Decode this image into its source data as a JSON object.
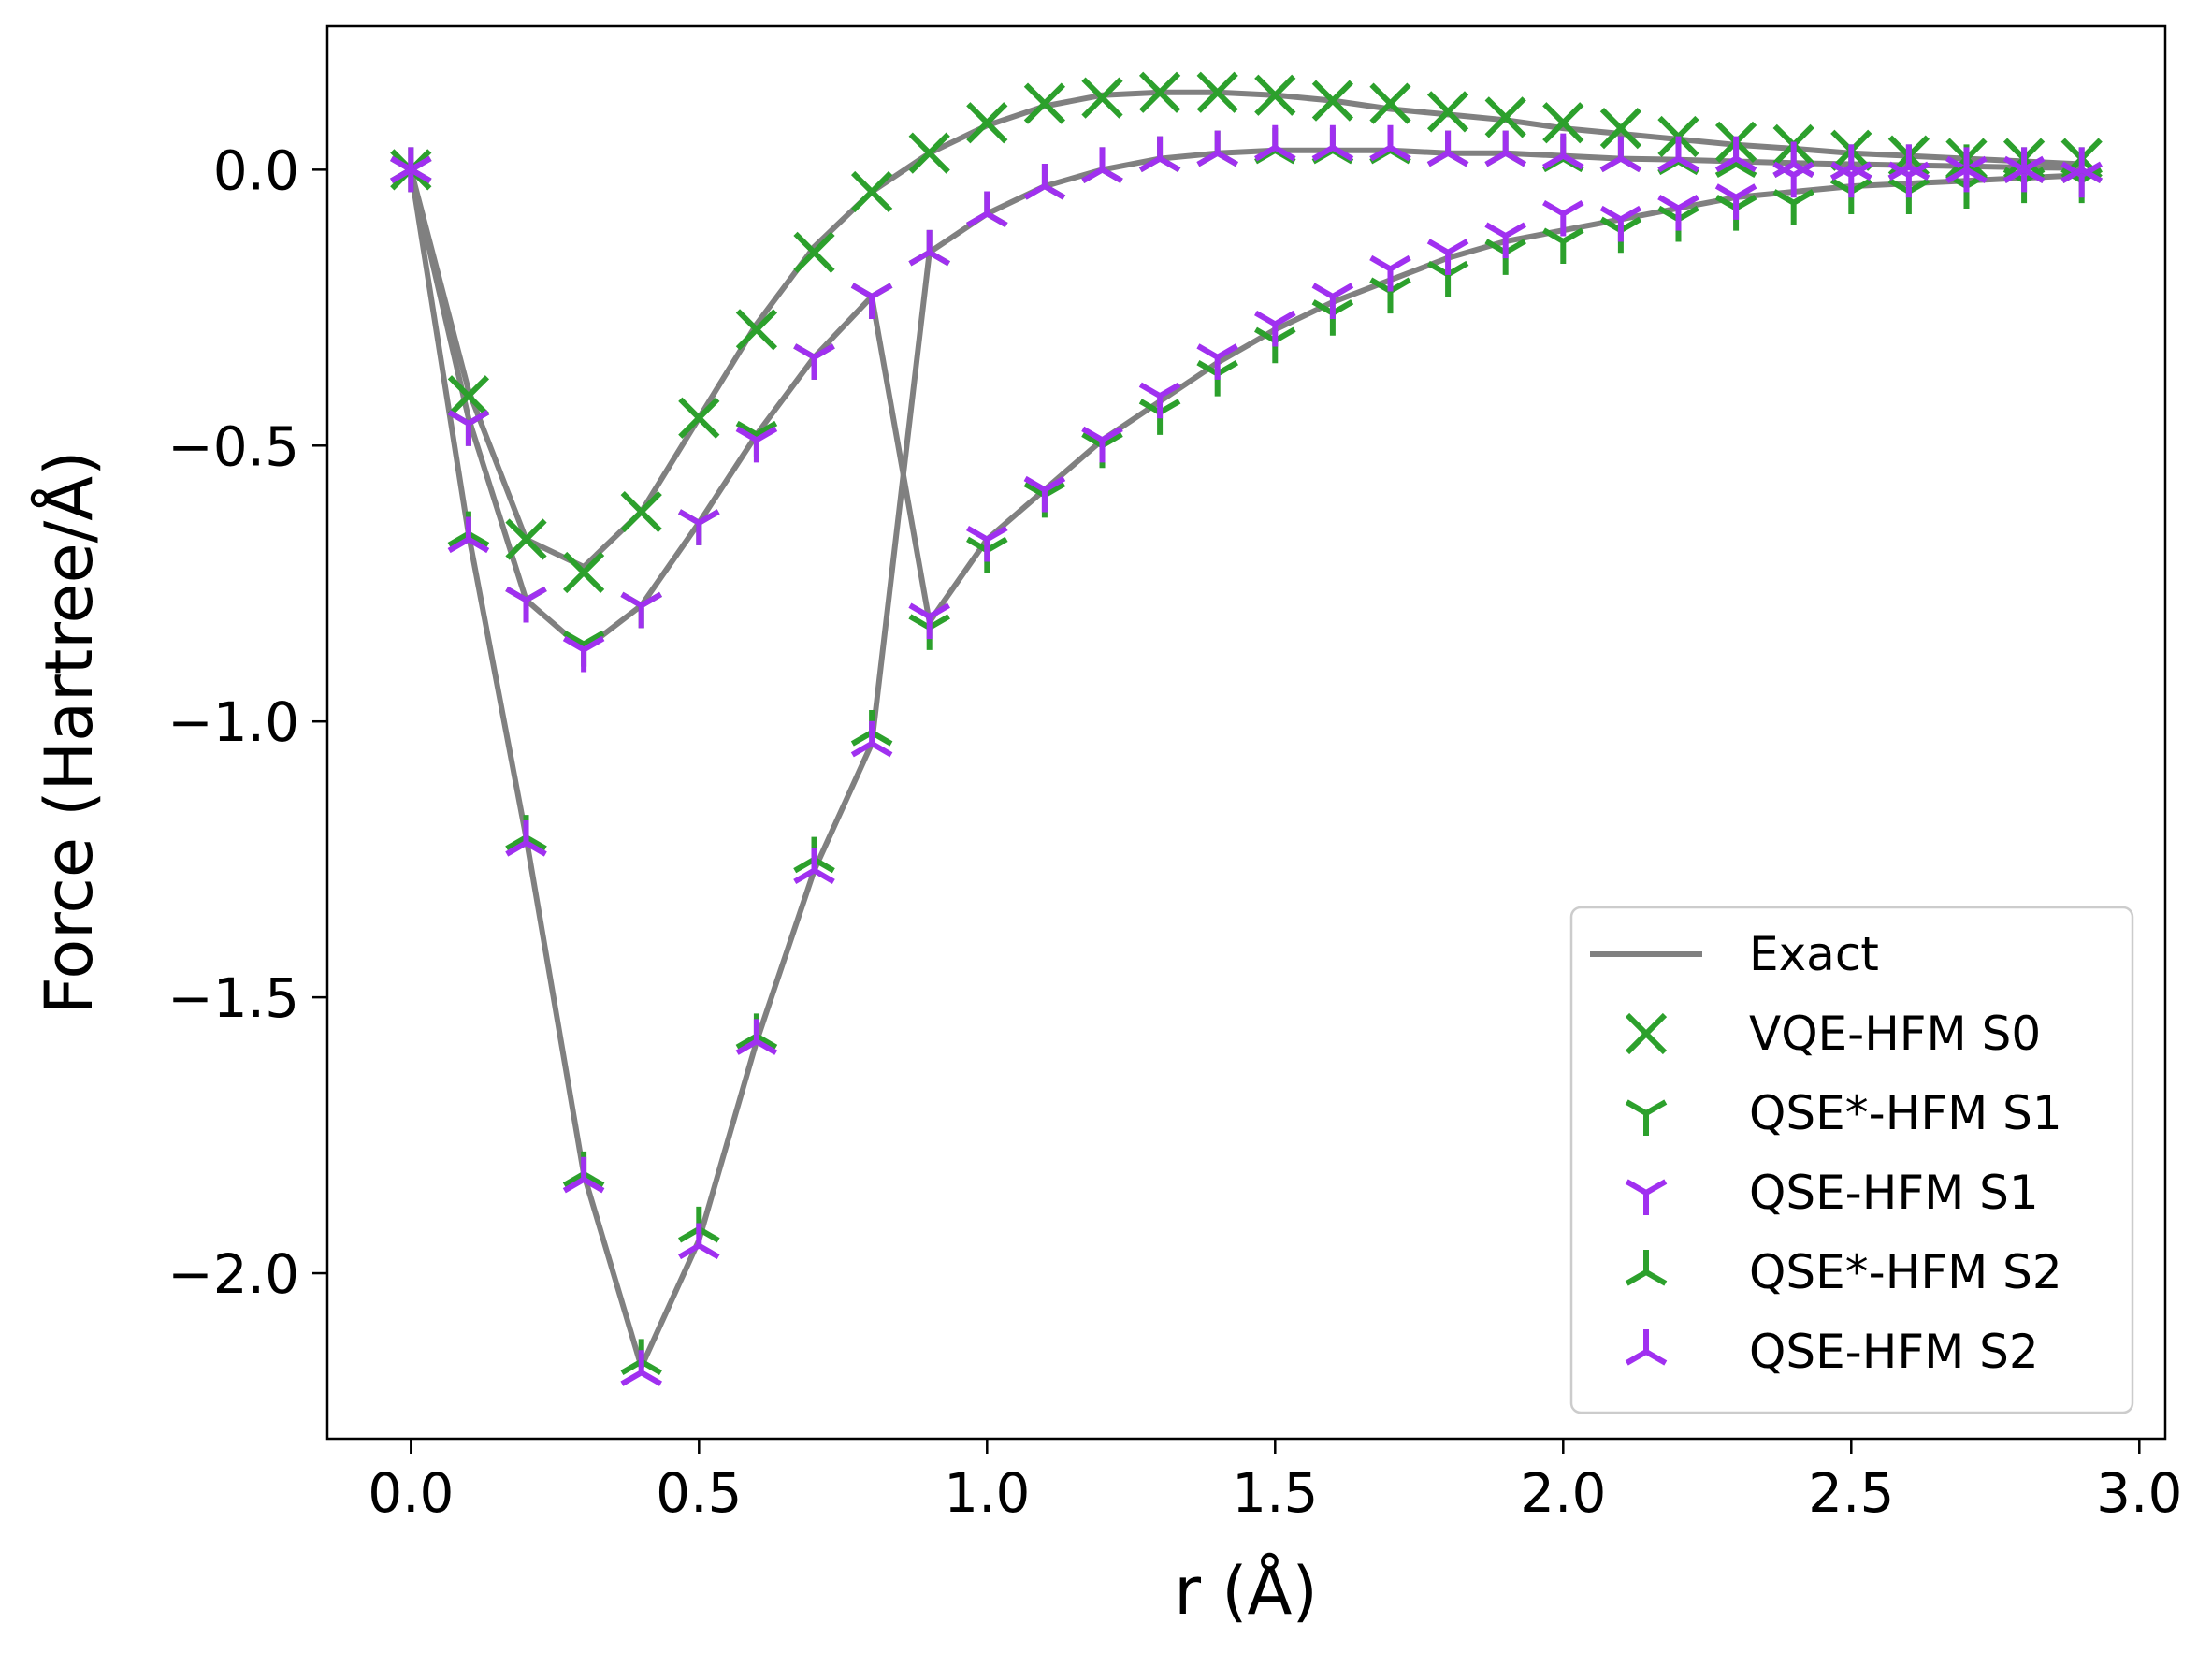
{
  "chart_data": {
    "type": "line",
    "title": "",
    "xlabel": "r (Å)",
    "ylabel": "Force (Hartree/Å)",
    "xlim": [
      -0.145,
      3.045
    ],
    "ylim": [
      -2.3,
      0.26
    ],
    "xticks": [
      0.0,
      0.5,
      1.0,
      1.5,
      2.0,
      2.5,
      3.0
    ],
    "xtick_labels": [
      "0.0",
      "0.5",
      "1.0",
      "1.5",
      "2.0",
      "2.5",
      "3.0"
    ],
    "yticks": [
      0.0,
      -0.5,
      -1.0,
      -1.5,
      -2.0
    ],
    "ytick_labels": [
      "0.0",
      "−0.5",
      "−1.0",
      "−1.5",
      "−2.0"
    ],
    "grid": false,
    "legend_position": "lower-right",
    "colors": {
      "exact": "#808080",
      "green": "#2ca02c",
      "purple": "#a030f0"
    },
    "x": [
      0.0,
      0.1,
      0.2,
      0.3,
      0.4,
      0.5,
      0.6,
      0.7,
      0.8,
      0.9,
      1.0,
      1.1,
      1.2,
      1.3,
      1.4,
      1.5,
      1.6,
      1.7,
      1.8,
      1.9,
      2.0,
      2.1,
      2.2,
      2.3,
      2.4,
      2.5,
      2.6,
      2.7,
      2.8,
      2.9
    ],
    "exact_curves": [
      {
        "name": "S0",
        "values": [
          0.0,
          -0.4,
          -0.67,
          -0.72,
          -0.62,
          -0.45,
          -0.28,
          -0.14,
          -0.04,
          0.03,
          0.08,
          0.115,
          0.135,
          0.14,
          0.14,
          0.135,
          0.125,
          0.11,
          0.1,
          0.09,
          0.075,
          0.065,
          0.055,
          0.045,
          0.038,
          0.03,
          0.025,
          0.02,
          0.015,
          0.01
        ]
      },
      {
        "name": "S1",
        "values": [
          0.0,
          -0.45,
          -0.78,
          -0.87,
          -0.79,
          -0.64,
          -0.48,
          -0.34,
          -0.23,
          -0.82,
          -0.67,
          -0.58,
          -0.49,
          -0.42,
          -0.35,
          -0.29,
          -0.24,
          -0.2,
          -0.16,
          -0.13,
          -0.11,
          -0.09,
          -0.07,
          -0.05,
          -0.04,
          -0.03,
          -0.025,
          -0.02,
          -0.015,
          -0.01
        ]
      },
      {
        "name": "S2",
        "values": [
          0.0,
          -0.66,
          -1.21,
          -1.82,
          -2.17,
          -1.94,
          -1.58,
          -1.27,
          -1.04,
          -0.15,
          -0.08,
          -0.03,
          0.0,
          0.02,
          0.03,
          0.035,
          0.035,
          0.035,
          0.03,
          0.03,
          0.025,
          0.02,
          0.018,
          0.015,
          0.012,
          0.01,
          0.008,
          0.006,
          0.004,
          0.003
        ]
      }
    ],
    "series": [
      {
        "name": "VQE-HFM S0",
        "marker": "x",
        "color": "#2ca02c",
        "values": [
          0.0,
          -0.41,
          -0.67,
          -0.73,
          -0.62,
          -0.45,
          -0.29,
          -0.15,
          -0.04,
          0.03,
          0.085,
          0.12,
          0.13,
          0.14,
          0.14,
          0.135,
          0.125,
          0.12,
          0.105,
          0.095,
          0.085,
          0.075,
          0.06,
          0.05,
          0.045,
          0.035,
          0.025,
          0.02,
          0.02,
          0.02
        ]
      },
      {
        "name": "QSE*-HFM S1",
        "marker": "tri_down",
        "color": "#2ca02c",
        "values": [
          0.0,
          -0.46,
          -0.78,
          -0.86,
          -0.79,
          -0.64,
          -0.48,
          -0.34,
          -0.23,
          -0.83,
          -0.69,
          -0.59,
          -0.5,
          -0.44,
          -0.37,
          -0.31,
          -0.26,
          -0.22,
          -0.19,
          -0.15,
          -0.13,
          -0.11,
          -0.09,
          -0.07,
          -0.06,
          -0.04,
          -0.04,
          -0.03,
          -0.02,
          -0.02
        ]
      },
      {
        "name": "QSE-HFM S1",
        "marker": "tri_down",
        "color": "#a030f0",
        "values": [
          0.0,
          -0.46,
          -0.78,
          -0.87,
          -0.79,
          -0.64,
          -0.49,
          -0.34,
          -0.23,
          -0.81,
          -0.67,
          -0.58,
          -0.49,
          -0.41,
          -0.34,
          -0.28,
          -0.23,
          -0.18,
          -0.15,
          -0.12,
          -0.08,
          -0.09,
          -0.07,
          -0.05,
          -0.01,
          -0.01,
          -0.01,
          0.0,
          0.0,
          -0.01
        ]
      },
      {
        "name": "QSE*-HFM S2",
        "marker": "tri_up",
        "color": "#2ca02c",
        "values": [
          0.0,
          -0.66,
          -1.21,
          -1.82,
          -2.16,
          -1.92,
          -1.57,
          -1.25,
          -1.02,
          -0.15,
          -0.08,
          -0.03,
          0.0,
          0.02,
          0.03,
          0.035,
          0.035,
          0.035,
          0.03,
          0.03,
          0.02,
          0.02,
          0.015,
          0.01,
          0.01,
          0.005,
          0.005,
          0.005,
          0.0,
          0.0
        ]
      },
      {
        "name": "QSE-HFM S2",
        "marker": "tri_up",
        "color": "#a030f0",
        "values": [
          0.0,
          -0.67,
          -1.22,
          -1.83,
          -2.18,
          -1.95,
          -1.58,
          -1.27,
          -1.04,
          -0.15,
          -0.08,
          -0.03,
          0.0,
          0.02,
          0.03,
          0.04,
          0.04,
          0.04,
          0.03,
          0.03,
          0.025,
          0.02,
          0.02,
          0.02,
          0.01,
          0.005,
          0.005,
          0.0,
          0.0,
          0.0
        ]
      }
    ],
    "legend": [
      {
        "label": "Exact",
        "marker": "line",
        "color": "#808080"
      },
      {
        "label": "VQE-HFM S0",
        "marker": "x",
        "color": "#2ca02c"
      },
      {
        "label": "QSE*-HFM S1",
        "marker": "tri_down",
        "color": "#2ca02c"
      },
      {
        "label": "QSE-HFM S1",
        "marker": "tri_down",
        "color": "#a030f0"
      },
      {
        "label": "QSE*-HFM S2",
        "marker": "tri_up",
        "color": "#2ca02c"
      },
      {
        "label": "QSE-HFM S2",
        "marker": "tri_up",
        "color": "#a030f0"
      }
    ]
  }
}
